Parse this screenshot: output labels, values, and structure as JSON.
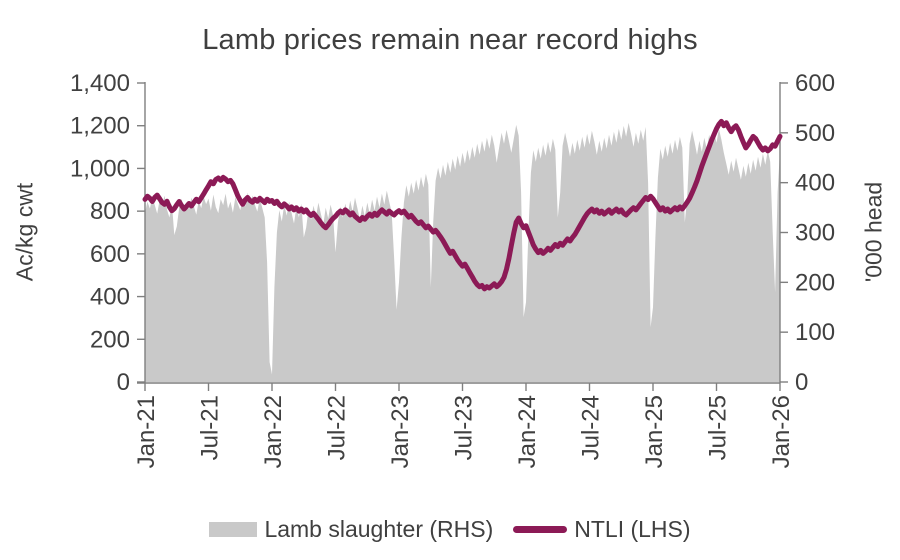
{
  "title": "Lamb prices remain near record highs",
  "colors": {
    "line": "#8C1A56",
    "area": "#C9C9C9",
    "axis": "#7F7F7F",
    "text": "#404040",
    "title_text": "#3F3F3F",
    "background": "#FFFFFF"
  },
  "legend": [
    {
      "label": "Lamb slaughter (RHS)",
      "swatch": "area"
    },
    {
      "label": "NTLI (LHS)",
      "swatch": "line"
    }
  ],
  "chart_data": {
    "type": "combo-area-line",
    "title": "Lamb prices remain near record highs",
    "x_description": "Weekly observations, Jan-2021 to Jan-2026 (261 points, week index 0-260)",
    "x_ticks": [
      {
        "label": "Jan-21",
        "week": 0
      },
      {
        "label": "Jul-21",
        "week": 26
      },
      {
        "label": "Jan-22",
        "week": 52
      },
      {
        "label": "Jul-22",
        "week": 78
      },
      {
        "label": "Jan-23",
        "week": 104
      },
      {
        "label": "Jul-23",
        "week": 130
      },
      {
        "label": "Jan-24",
        "week": 156
      },
      {
        "label": "Jul-24",
        "week": 182
      },
      {
        "label": "Jan-25",
        "week": 208
      },
      {
        "label": "Jul-25",
        "week": 234
      },
      {
        "label": "Jan-26",
        "week": 260
      }
    ],
    "left_axis": {
      "label": "Ac/kg cwt",
      "min": 0,
      "max": 1400,
      "tick_values": [
        0,
        200,
        400,
        600,
        800,
        1000,
        1200,
        1400
      ],
      "tick_labels": [
        "0",
        "200",
        "400",
        "600",
        "800",
        "1,000",
        "1,200",
        "1,400"
      ]
    },
    "right_axis": {
      "label": "'000 head",
      "min": 0,
      "max": 600,
      "tick_values": [
        0,
        100,
        200,
        300,
        400,
        500,
        600
      ],
      "tick_labels": [
        "0",
        "100",
        "200",
        "300",
        "400",
        "500",
        "600"
      ]
    },
    "series": [
      {
        "name": "Lamb slaughter (RHS)",
        "type": "area",
        "axis": "right",
        "color": "#C9C9C9",
        "values": [
          340,
          362,
          348,
          371,
          355,
          338,
          366,
          352,
          374,
          346,
          330,
          358,
          295,
          312,
          350,
          368,
          342,
          361,
          347,
          370,
          353,
          336,
          364,
          349,
          372,
          357,
          368,
          344,
          376,
          351,
          339,
          367,
          355,
          378,
          348,
          362,
          340,
          371,
          358,
          345,
          369,
          352,
          380,
          360,
          374,
          356,
          342,
          368,
          350,
          330,
          240,
          40,
          15,
          190,
          300,
          345,
          322,
          356,
          334,
          362,
          340,
          318,
          352,
          330,
          358,
          290,
          310,
          348,
          326,
          354,
          332,
          360,
          338,
          316,
          350,
          328,
          356,
          334,
          260,
          320,
          352,
          330,
          358,
          336,
          364,
          342,
          370,
          348,
          326,
          354,
          332,
          360,
          338,
          366,
          344,
          372,
          350,
          378,
          356,
          384,
          362,
          340,
          250,
          145,
          200,
          290,
          360,
          395,
          372,
          400,
          378,
          406,
          384,
          412,
          390,
          418,
          396,
          190,
          320,
          404,
          430,
          408,
          436,
          414,
          442,
          420,
          448,
          426,
          454,
          432,
          460,
          438,
          466,
          444,
          472,
          450,
          478,
          456,
          484,
          462,
          490,
          468,
          496,
          474,
          440,
          470,
          500,
          478,
          506,
          484,
          460,
          488,
          516,
          494,
          380,
          130,
          160,
          300,
          420,
          465,
          442,
          470,
          448,
          476,
          454,
          482,
          460,
          488,
          466,
          330,
          380,
          474,
          500,
          478,
          452,
          480,
          458,
          486,
          464,
          492,
          470,
          498,
          476,
          504,
          482,
          456,
          484,
          462,
          490,
          468,
          496,
          474,
          502,
          480,
          508,
          486,
          514,
          492,
          520,
          498,
          472,
          500,
          478,
          506,
          484,
          512,
          400,
          110,
          150,
          290,
          410,
          468,
          446,
          474,
          452,
          480,
          458,
          486,
          464,
          492,
          470,
          320,
          370,
          478,
          504,
          482,
          456,
          484,
          462,
          490,
          468,
          496,
          474,
          502,
          480,
          508,
          486,
          460,
          438,
          416,
          444,
          422,
          450,
          428,
          406,
          434,
          412,
          440,
          418,
          446,
          424,
          452,
          430,
          458,
          436,
          464,
          442,
          300,
          180,
          380,
          465
        ]
      },
      {
        "name": "NTLI (LHS)",
        "type": "line",
        "axis": "left",
        "color": "#8C1A56",
        "values": [
          855,
          870,
          860,
          845,
          865,
          875,
          858,
          840,
          832,
          846,
          820,
          802,
          812,
          830,
          845,
          826,
          810,
          822,
          836,
          824,
          840,
          856,
          844,
          862,
          880,
          900,
          918,
          938,
          928,
          948,
          955,
          944,
          958,
          950,
          938,
          944,
          928,
          900,
          872,
          850,
          832,
          852,
          864,
          850,
          842,
          856,
          846,
          860,
          850,
          840,
          856,
          846,
          850,
          836,
          846,
          830,
          820,
          834,
          824,
          810,
          820,
          806,
          816,
          800,
          810,
          796,
          806,
          790,
          780,
          790,
          776,
          762,
          746,
          732,
          722,
          736,
          752,
          766,
          776,
          790,
          800,
          792,
          806,
          796,
          782,
          792,
          776,
          766,
          756,
          770,
          762,
          776,
          786,
          776,
          790,
          780,
          795,
          806,
          796,
          786,
          800,
          790,
          782,
          794,
          802,
          792,
          800,
          786,
          772,
          780,
          766,
          752,
          742,
          750,
          736,
          722,
          730,
          716,
          702,
          710,
          696,
          680,
          662,
          642,
          622,
          602,
          612,
          592,
          572,
          556,
          542,
          552,
          532,
          512,
          492,
          472,
          456,
          446,
          452,
          436,
          446,
          440,
          450,
          460,
          446,
          456,
          470,
          490,
          528,
          578,
          638,
          698,
          748,
          768,
          742,
          722,
          732,
          702,
          672,
          642,
          622,
          606,
          616,
          602,
          612,
          626,
          616,
          630,
          644,
          634,
          650,
          640,
          656,
          670,
          660,
          676,
          690,
          710,
          730,
          750,
          770,
          788,
          800,
          810,
          796,
          806,
          790,
          800,
          786,
          796,
          806,
          790,
          800,
          810,
          796,
          806,
          790,
          782,
          794,
          806,
          816,
          806,
          820,
          836,
          850,
          864,
          854,
          870,
          858,
          840,
          822,
          806,
          816,
          800,
          810,
          796,
          806,
          816,
          806,
          820,
          810,
          826,
          842,
          860,
          886,
          912,
          942,
          976,
          1010,
          1042,
          1072,
          1102,
          1132,
          1160,
          1186,
          1206,
          1220,
          1200,
          1214,
          1190,
          1172,
          1190,
          1200,
          1180,
          1150,
          1122,
          1096,
          1112,
          1132,
          1150,
          1140,
          1120,
          1100,
          1086,
          1096,
          1082,
          1092,
          1110,
          1104,
          1128,
          1150
        ]
      }
    ]
  }
}
